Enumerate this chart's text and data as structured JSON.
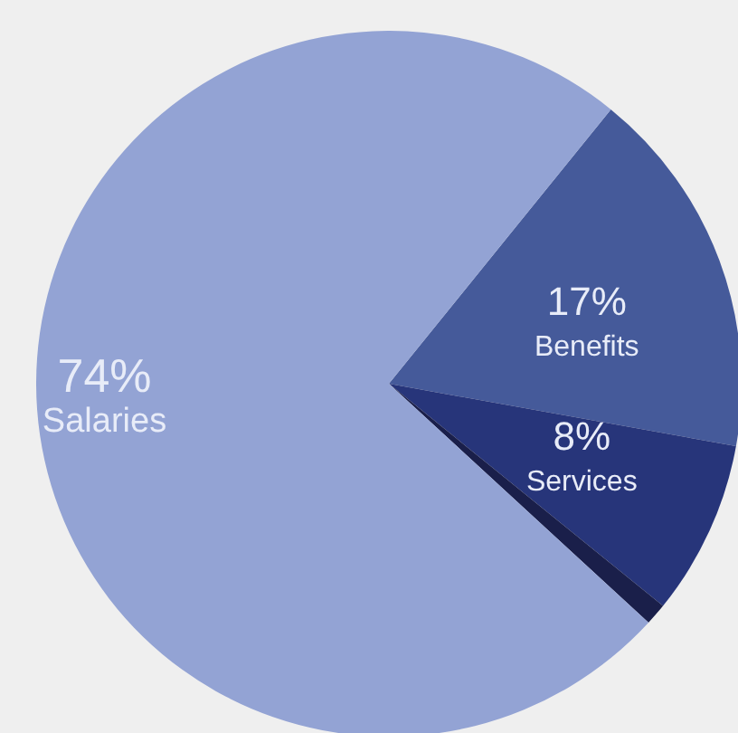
{
  "chart_data": {
    "type": "pie",
    "categories": [
      "Benefits",
      "Services",
      null,
      "Salaries"
    ],
    "values": [
      17,
      8,
      1,
      74
    ],
    "colors": [
      "#455a9a",
      "#27357a",
      "#1a1f4a",
      "#93a3d4"
    ],
    "value_labels": [
      "17%",
      "8%",
      null,
      "74%"
    ]
  }
}
